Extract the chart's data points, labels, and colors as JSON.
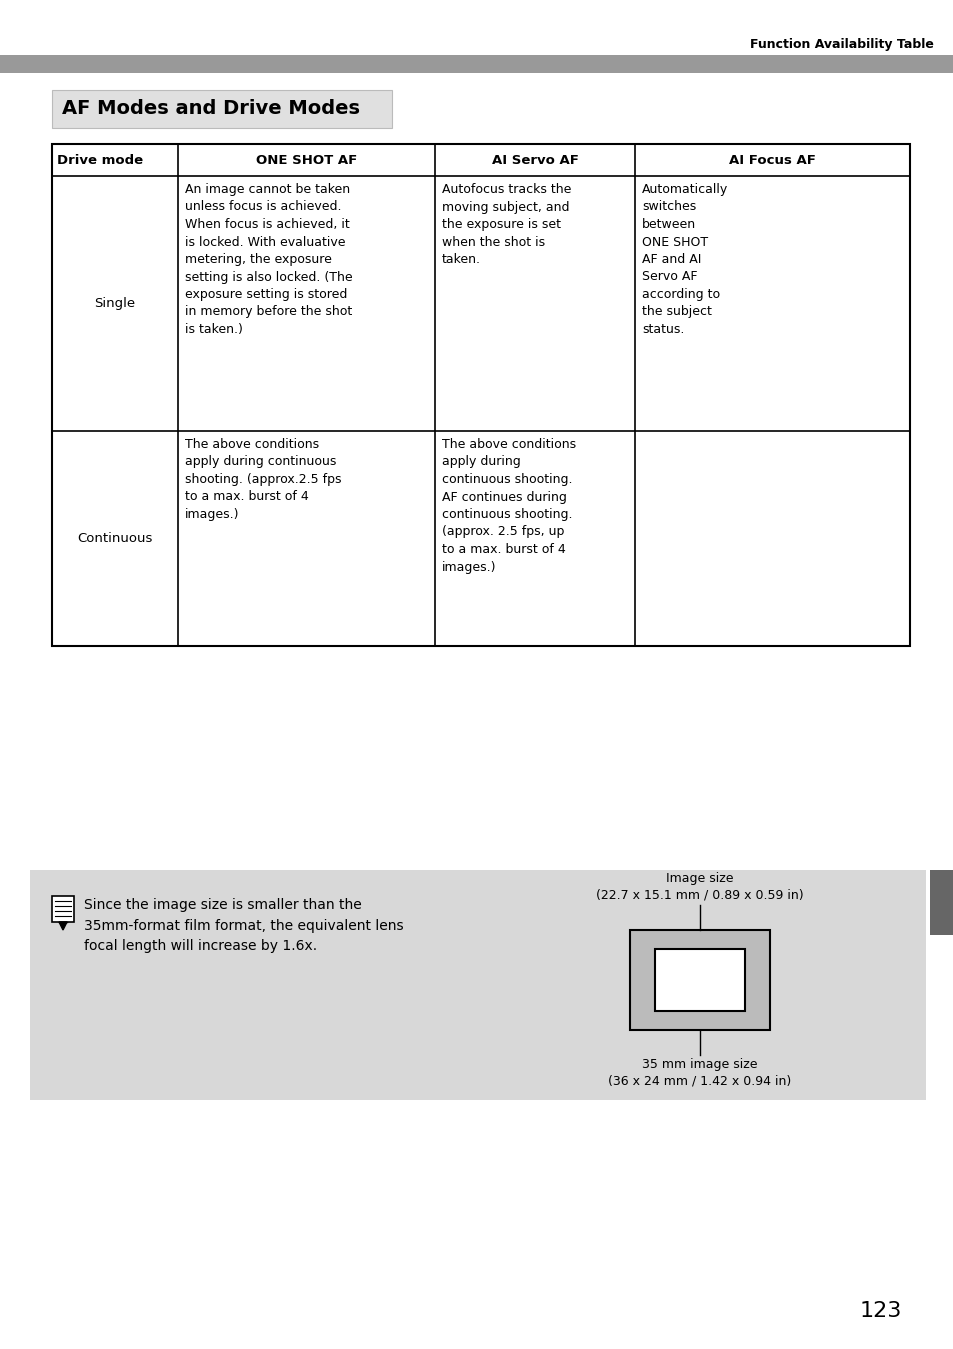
{
  "page_bg": "#ffffff",
  "header_text": "Function Availability Table",
  "header_bar_color": "#999999",
  "title": "AF Modes and Drive Modes",
  "title_bg": "#e0e0e0",
  "col_headers": [
    "Drive mode",
    "ONE SHOT AF",
    "AI Servo AF",
    "AI Focus AF"
  ],
  "row1_label": "Single",
  "row1_oneshot": "An image cannot be taken\nunless focus is achieved.\nWhen focus is achieved, it\nis locked. With evaluative\nmetering, the exposure\nsetting is also locked. (The\nexposure setting is stored\nin memory before the shot\nis taken.)",
  "row1_servo": "Autofocus tracks the\nmoving subject, and\nthe exposure is set\nwhen the shot is\ntaken.",
  "row1_focus": "Automatically\nswitches\nbetween\nONE SHOT\nAF and AI\nServo AF\naccording to\nthe subject\nstatus.",
  "row2_label": "Continuous",
  "row2_oneshot": "The above conditions\napply during continuous\nshooting. (approx.2.5 fps\nto a max. burst of 4\nimages.)",
  "row2_servo": "The above conditions\napply during\ncontinuous shooting.\nAF continues during\ncontinuous shooting.\n(approx. 2.5 fps, up\nto a max. burst of 4\nimages.)",
  "row2_focus": "",
  "note_bg": "#d8d8d8",
  "note_left": "Since the image size is smaller than the\n35mm-format film format, the equivalent lens\nfocal length will increase by 1.6x.",
  "note_img_top": "Image size\n(22.7 x 15.1 mm / 0.89 x 0.59 in)",
  "note_img_bottom": "35 mm image size\n(36 x 24 mm / 1.42 x 0.94 in)",
  "page_number": "123",
  "right_tab_color": "#666666"
}
